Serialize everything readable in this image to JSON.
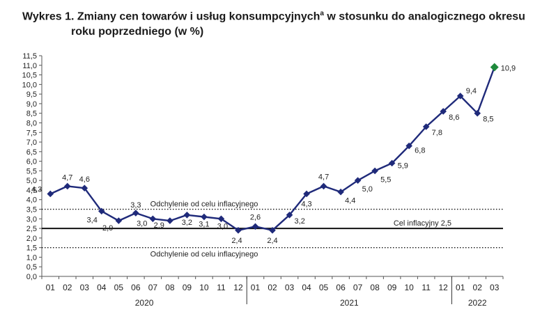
{
  "title": {
    "prefix": "Wykres 1. Zmiany cen towarów i usług konsumpcyjnych",
    "sup": "a",
    "suffix": " w stosunku do analogicznego okresu",
    "line2": "roku poprzedniego (w %)"
  },
  "chart_data": {
    "type": "line",
    "ylim": [
      0,
      11.5
    ],
    "y_step": 0.5,
    "grid": false,
    "months": [
      "01",
      "02",
      "03",
      "04",
      "05",
      "06",
      "07",
      "08",
      "09",
      "10",
      "11",
      "12",
      "01",
      "02",
      "03",
      "04",
      "05",
      "06",
      "07",
      "08",
      "09",
      "10",
      "11",
      "12",
      "01",
      "02",
      "03"
    ],
    "years": [
      {
        "label": "2020",
        "start": 0,
        "end": 11
      },
      {
        "label": "2021",
        "start": 12,
        "end": 23
      },
      {
        "label": "2022",
        "start": 24,
        "end": 26
      }
    ],
    "series": [
      {
        "color": "#1f2a7a",
        "values": [
          4.3,
          4.7,
          4.6,
          3.4,
          2.9,
          3.3,
          3.0,
          2.9,
          3.2,
          3.1,
          3.0,
          2.4,
          2.6,
          2.4,
          3.2,
          4.3,
          4.7,
          4.4,
          5.0,
          5.5,
          5.9,
          6.8,
          7.8,
          8.6,
          9.4,
          8.5,
          10.9
        ],
        "labels": [
          "4,3",
          "4,7",
          "4,6",
          "3,4",
          "2,9",
          "3,3",
          "3,0",
          "2,9",
          "3,2",
          "3,1",
          "3,0",
          "2,4",
          "2,6",
          "2,4",
          "3,2",
          "4,3",
          "4,7",
          "4,4",
          "5,0",
          "5,5",
          "5,9",
          "6,8",
          "7,8",
          "8,6",
          "9,4",
          "8,5",
          "10,9"
        ],
        "last_point_color": "#1e8a3c"
      }
    ],
    "reference_lines": [
      {
        "value": 3.5,
        "style": "dotted",
        "label": "Odchylenie od celu inflacyjnego"
      },
      {
        "value": 2.5,
        "style": "solid",
        "label": "Cel inflacyjny 2,5"
      },
      {
        "value": 1.5,
        "style": "dotted",
        "label": "Odchylenie od celu inflacyjnego"
      }
    ]
  }
}
